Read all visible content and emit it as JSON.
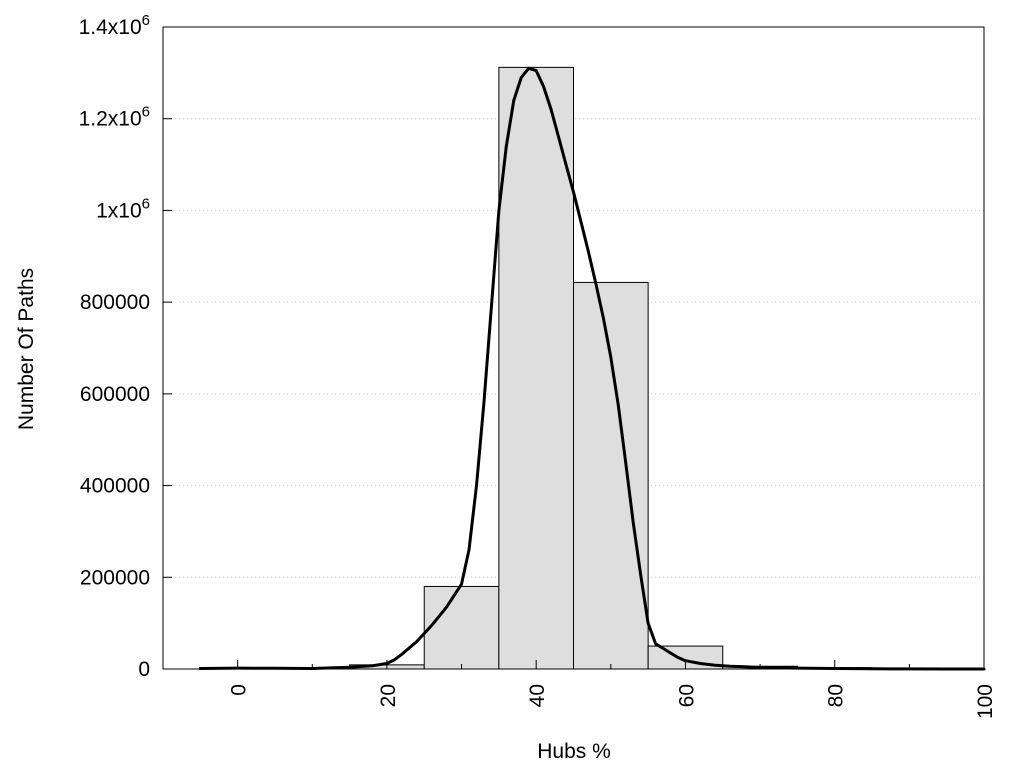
{
  "chart_data": {
    "type": "bar",
    "xlabel": "Hubs %",
    "ylabel": "Number Of Paths",
    "xlim": [
      -10,
      100
    ],
    "ylim": [
      0,
      1400000
    ],
    "grid": true,
    "x_ticks": [
      {
        "value": 0,
        "label": "0"
      },
      {
        "value": 20,
        "label": "20"
      },
      {
        "value": 40,
        "label": "40"
      },
      {
        "value": 60,
        "label": "60"
      },
      {
        "value": 80,
        "label": "80"
      },
      {
        "value": 100,
        "label": "100"
      }
    ],
    "y_ticks": [
      {
        "value": 0,
        "label": "0",
        "sup": ""
      },
      {
        "value": 200000,
        "label": "200000",
        "sup": ""
      },
      {
        "value": 400000,
        "label": "400000",
        "sup": ""
      },
      {
        "value": 600000,
        "label": "600000",
        "sup": ""
      },
      {
        "value": 800000,
        "label": "800000",
        "sup": ""
      },
      {
        "value": 1000000,
        "label": "1x10",
        "sup": "6"
      },
      {
        "value": 1200000,
        "label": "1.2x10",
        "sup": "6"
      },
      {
        "value": 1400000,
        "label": "1.4x10",
        "sup": "6"
      }
    ],
    "bin_width": 10,
    "bins": [
      {
        "center": 0,
        "value": 2000
      },
      {
        "center": 10,
        "value": 1500
      },
      {
        "center": 20,
        "value": 9000
      },
      {
        "center": 30,
        "value": 180000
      },
      {
        "center": 40,
        "value": 1312000
      },
      {
        "center": 50,
        "value": 843000
      },
      {
        "center": 60,
        "value": 50000
      },
      {
        "center": 70,
        "value": 6000
      },
      {
        "center": 80,
        "value": 3000
      },
      {
        "center": 90,
        "value": 1500
      },
      {
        "center": 100,
        "value": 800
      }
    ],
    "curve": {
      "x": [
        -5,
        0,
        5,
        10,
        15,
        18,
        20,
        21,
        22,
        24,
        26,
        28,
        30,
        31,
        32,
        33,
        34,
        35,
        36,
        37,
        38,
        39,
        40,
        41,
        42,
        43,
        44,
        45,
        46,
        47,
        48,
        49,
        50,
        51,
        52,
        53,
        54,
        55,
        56,
        57,
        58,
        59,
        60,
        62,
        64,
        66,
        68,
        70,
        75,
        80,
        85,
        90,
        95,
        100
      ],
      "y": [
        1000,
        2000,
        1500,
        1000,
        4000,
        7000,
        12000,
        20000,
        32000,
        60000,
        95000,
        135000,
        185000,
        260000,
        400000,
        580000,
        790000,
        1000000,
        1140000,
        1240000,
        1290000,
        1310000,
        1305000,
        1270000,
        1220000,
        1160000,
        1100000,
        1040000,
        975000,
        910000,
        840000,
        765000,
        680000,
        575000,
        450000,
        320000,
        205000,
        100000,
        55000,
        45000,
        35000,
        25000,
        18000,
        12000,
        8000,
        6000,
        5000,
        3000,
        2000,
        1000,
        500,
        300,
        0,
        0
      ]
    }
  }
}
